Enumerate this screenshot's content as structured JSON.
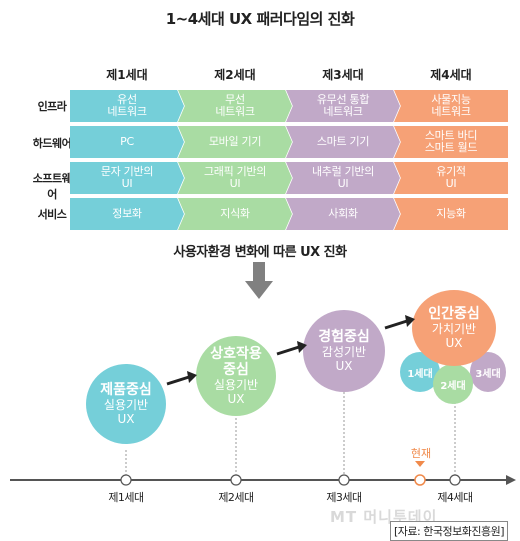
{
  "title": "1~4세대 UX 패러다임의 진화",
  "generations": [
    "제1세대",
    "제2세대",
    "제3세대",
    "제4세대"
  ],
  "rows": [
    {
      "label": "인프라",
      "cells": [
        [
          "유선",
          "네트워크"
        ],
        [
          "무선",
          "네트워크"
        ],
        [
          "유무선 통합",
          "네트워크"
        ],
        [
          "사물지능",
          "네트워크"
        ]
      ]
    },
    {
      "label": "하드웨어",
      "cells": [
        [
          "PC"
        ],
        [
          "모바일 기기"
        ],
        [
          "스마트 기기"
        ],
        [
          "스마트 바디",
          "스마트 월드"
        ]
      ]
    },
    {
      "label": "소프트웨어",
      "cells": [
        [
          "문자 기반의",
          "UI"
        ],
        [
          "그래픽 기반의",
          "UI"
        ],
        [
          "내추럴 기반의",
          "UI"
        ],
        [
          "유기적",
          "UI"
        ]
      ]
    },
    {
      "label": "서비스",
      "cells": [
        [
          "정보화"
        ],
        [
          "지식화"
        ],
        [
          "사회화"
        ],
        [
          "지능화"
        ]
      ]
    }
  ],
  "subtitle": "사용자환경 변화에 따른 UX 진화",
  "stages": [
    {
      "title": [
        "제품중심"
      ],
      "sub": [
        "실용기반",
        "UX"
      ]
    },
    {
      "title": [
        "상호작용",
        "중심"
      ],
      "sub": [
        "실용기반",
        "UX"
      ]
    },
    {
      "title": [
        "경험중심"
      ],
      "sub": [
        "감성기반",
        "UX"
      ]
    },
    {
      "title": [
        "인간중심"
      ],
      "sub": [
        "가치기반",
        "UX"
      ]
    }
  ],
  "mini_circles": [
    "1세대",
    "2세대",
    "3세대"
  ],
  "timeline_labels": [
    "제1세대",
    "제2세대",
    "제3세대",
    "제4세대"
  ],
  "current_label": "현재",
  "watermark": "MT 머니투데이",
  "source": "[자료: 한국정보화진흥원]",
  "colors": {
    "gen1": "#75cfd9",
    "gen2": "#a9dca3",
    "gen3": "#c1a9c8",
    "gen4": "#f6a176",
    "current": "#f08a4b",
    "arrow": "#808080"
  }
}
